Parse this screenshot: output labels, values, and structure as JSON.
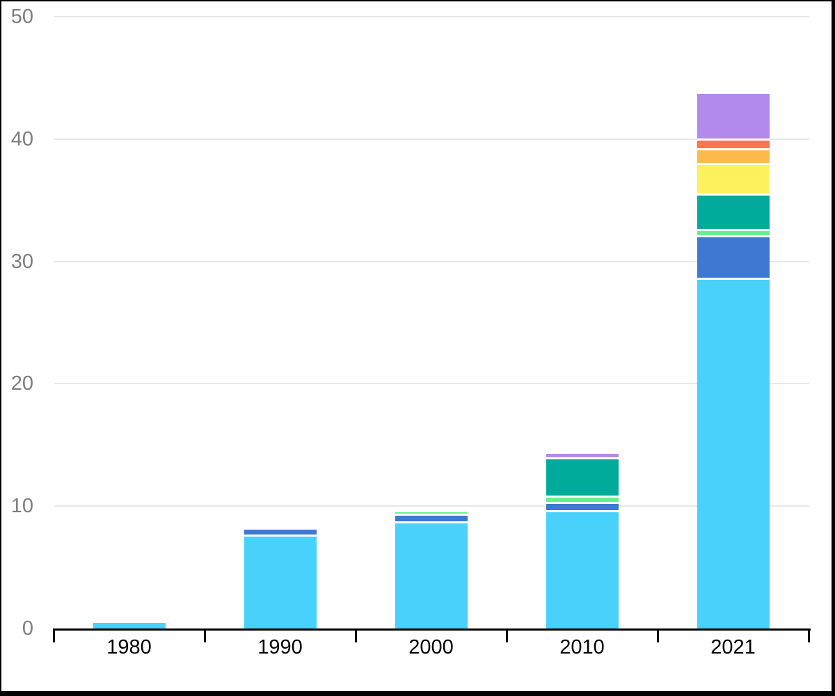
{
  "chart_data": {
    "type": "bar",
    "stacked": true,
    "title": "",
    "xlabel": "",
    "ylabel": "",
    "categories": [
      "1980",
      "1990",
      "2000",
      "2010",
      "2021"
    ],
    "series": [
      {
        "name": "cyan-segment",
        "color": "#48d1fb",
        "values": [
          0.45,
          7.5,
          8.6,
          9.5,
          28.5
        ]
      },
      {
        "name": "blue-segment",
        "color": "#3e78d2",
        "values": [
          0,
          0.6,
          0.6,
          0.7,
          3.5
        ]
      },
      {
        "name": "green-segment",
        "color": "#66ef90",
        "values": [
          0,
          0,
          0.3,
          0.5,
          0.5
        ]
      },
      {
        "name": "teal-segment",
        "color": "#01ab9c",
        "values": [
          0,
          0,
          0,
          3.1,
          2.9
        ]
      },
      {
        "name": "yellow-segment",
        "color": "#fdf25e",
        "values": [
          0,
          0,
          0,
          0,
          2.5
        ]
      },
      {
        "name": "orange-segment",
        "color": "#fdb94b",
        "values": [
          0,
          0,
          0,
          0,
          1.2
        ]
      },
      {
        "name": "red-segment",
        "color": "#fc754d",
        "values": [
          0,
          0,
          0,
          0,
          0.8
        ]
      },
      {
        "name": "purple-segment",
        "color": "#b38aeb",
        "values": [
          0,
          0,
          0,
          0.5,
          3.8
        ]
      }
    ],
    "totals": [
      0.45,
      8.1,
      9.5,
      14.3,
      43.7
    ],
    "ylim": [
      0,
      50
    ],
    "yticks": [
      0,
      10,
      20,
      30,
      40,
      50
    ],
    "grid": "horizontal-light-gray",
    "legend": "none",
    "axis_colors": {
      "y_tick_label": "#7d7d7d",
      "x_tick_label": "#000000",
      "axis_line": "#000000",
      "gridline": "#e7e7e7"
    }
  }
}
